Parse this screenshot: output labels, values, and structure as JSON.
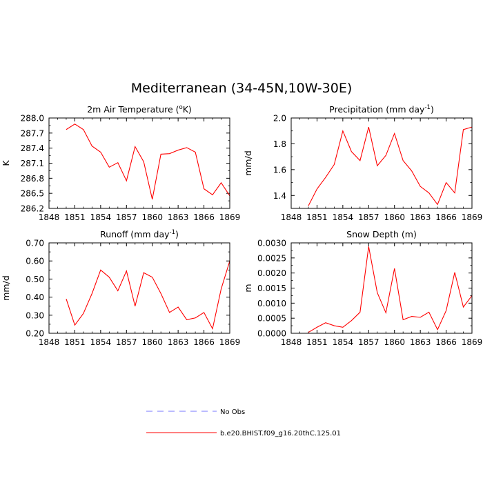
{
  "figure": {
    "title": "Mediterranean (34-45N,10W-30E)"
  },
  "chart_data": [
    {
      "type": "line",
      "title": "2m Air Temperature (°K)",
      "title_parts": {
        "pre": "2m Air Temperature (",
        "sup": "o",
        "post": "K)"
      },
      "ylabel": "K",
      "xlim": [
        1848,
        1869
      ],
      "ylim": [
        286.2,
        288.0
      ],
      "xticks": [
        1848,
        1851,
        1854,
        1857,
        1860,
        1863,
        1866,
        1869
      ],
      "yticks": [
        "286.2",
        "286.5",
        "286.8",
        "287.1",
        "287.4",
        "287.7",
        "288.0"
      ],
      "x": [
        1850,
        1851,
        1852,
        1853,
        1854,
        1855,
        1856,
        1857,
        1858,
        1859,
        1860,
        1861,
        1862,
        1863,
        1864,
        1865,
        1866,
        1867,
        1868,
        1869
      ],
      "series": [
        {
          "name": "b.e20.BHIST.f09_g16.20thC.125.01",
          "color": "#ff0000",
          "values": [
            287.77,
            287.88,
            287.77,
            287.44,
            287.32,
            287.02,
            287.11,
            286.75,
            287.43,
            287.13,
            286.38,
            287.28,
            287.29,
            287.36,
            287.41,
            287.32,
            286.59,
            286.47,
            286.71,
            286.45
          ]
        }
      ]
    },
    {
      "type": "line",
      "title": "Precipitation (mm day-1)",
      "title_parts": {
        "pre": "Precipitation (mm day",
        "sup": "-1",
        "post": ")"
      },
      "ylabel": "mm/d",
      "xlim": [
        1848,
        1869
      ],
      "ylim": [
        1.3,
        2.0
      ],
      "xticks": [
        1848,
        1851,
        1854,
        1857,
        1860,
        1863,
        1866,
        1869
      ],
      "yticks": [
        "1.4",
        "1.6",
        "1.8",
        "2.0"
      ],
      "x": [
        1850,
        1851,
        1852,
        1853,
        1854,
        1855,
        1856,
        1857,
        1858,
        1859,
        1860,
        1861,
        1862,
        1863,
        1864,
        1865,
        1866,
        1867,
        1868,
        1869
      ],
      "series": [
        {
          "name": "b.e20.BHIST.f09_g16.20thC.125.01",
          "color": "#ff0000",
          "values": [
            1.32,
            1.45,
            1.54,
            1.64,
            1.9,
            1.74,
            1.67,
            1.93,
            1.63,
            1.71,
            1.88,
            1.67,
            1.59,
            1.47,
            1.42,
            1.33,
            1.5,
            1.42,
            1.91,
            1.93
          ]
        }
      ]
    },
    {
      "type": "line",
      "title": "Runoff (mm day-1)",
      "title_parts": {
        "pre": "Runoff (mm day",
        "sup": "-1",
        "post": ")"
      },
      "ylabel": "mm/d",
      "xlim": [
        1848,
        1869
      ],
      "ylim": [
        0.2,
        0.7
      ],
      "xticks": [
        1848,
        1851,
        1854,
        1857,
        1860,
        1863,
        1866,
        1869
      ],
      "yticks": [
        "0.20",
        "0.30",
        "0.40",
        "0.50",
        "0.60",
        "0.70"
      ],
      "x": [
        1850,
        1851,
        1852,
        1853,
        1854,
        1855,
        1856,
        1857,
        1858,
        1859,
        1860,
        1861,
        1862,
        1863,
        1864,
        1865,
        1866,
        1867,
        1868,
        1869
      ],
      "series": [
        {
          "name": "b.e20.BHIST.f09_g16.20thC.125.01",
          "color": "#ff0000",
          "values": [
            0.39,
            0.245,
            0.31,
            0.42,
            0.55,
            0.51,
            0.435,
            0.545,
            0.35,
            0.535,
            0.51,
            0.42,
            0.315,
            0.345,
            0.275,
            0.285,
            0.315,
            0.225,
            0.445,
            0.6
          ]
        }
      ]
    },
    {
      "type": "line",
      "title": "Snow Depth (m)",
      "title_parts": {
        "pre": "Snow Depth (m)",
        "sup": "",
        "post": ""
      },
      "ylabel": "m",
      "xlim": [
        1848,
        1869
      ],
      "ylim": [
        0,
        0.003
      ],
      "xticks": [
        1848,
        1851,
        1854,
        1857,
        1860,
        1863,
        1866,
        1869
      ],
      "yticks": [
        "0.0000",
        "0.0005",
        "0.0010",
        "0.0015",
        "0.0020",
        "0.0025",
        "0.0030"
      ],
      "x": [
        1850,
        1851,
        1852,
        1853,
        1854,
        1855,
        1856,
        1857,
        1858,
        1859,
        1860,
        1861,
        1862,
        1863,
        1864,
        1865,
        1866,
        1867,
        1868,
        1869
      ],
      "series": [
        {
          "name": "b.e20.BHIST.f09_g16.20thC.125.01",
          "color": "#ff0000",
          "values": [
            3e-05,
            0.0002,
            0.00035,
            0.00025,
            0.0002,
            0.00042,
            0.0007,
            0.00288,
            0.00135,
            0.00068,
            0.00215,
            0.00045,
            0.00056,
            0.00053,
            0.0007,
            0.00012,
            0.00075,
            0.00202,
            0.00087,
            0.00125
          ]
        }
      ]
    }
  ],
  "legend": [
    {
      "label": "No Obs",
      "color": "#7777ff",
      "style": "dashed"
    },
    {
      "label": "b.e20.BHIST.f09_g16.20thC.125.01",
      "color": "#ff0000",
      "style": "solid"
    }
  ]
}
